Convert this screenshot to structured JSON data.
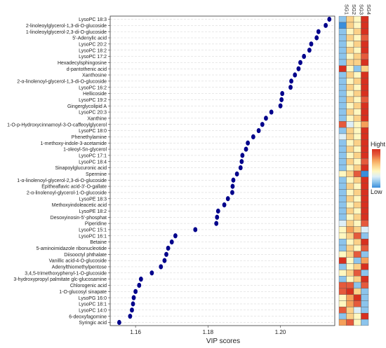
{
  "chart_data": {
    "type": "scatter",
    "title": "",
    "xlabel": "VIP scores",
    "ylabel": "",
    "xlim": [
      1.153,
      1.215
    ],
    "xticks": [
      1.16,
      1.18,
      1.2
    ],
    "xtick_labels": [
      "1.16",
      "1.18",
      "1.20"
    ],
    "grid": "horizontal dashed",
    "point_color": "#00008B",
    "categories": [
      "LysoPC 18:3",
      "2-linoleoylglycerol-1,3-di-O-glucoside",
      "1-linoleoylglycerol-2,3-di-O-glucoside",
      "5'-Adenylic acid",
      "LysoPC 20:2",
      "LysoPC 18:2",
      "LysoPC 17:2",
      "Hexadecylsphingosine",
      "d-pantothenic acid",
      "Xanthosine",
      "2-α-linolenoyl-glycerol-1,3-di-O-glucoside",
      "LysoPC 16:2",
      "Hellicoside",
      "LysoPC 19:2",
      "Gingerglycolipid A",
      "LysoPC 20:3",
      "Xanthine",
      "1-O-p-Hydroxycinnamoyl-3-O-caffeoylglycerol",
      "LysoPC 18:0",
      "Phenethylamine",
      "1-methoxy-indole-3-acetamide",
      "1-oleoyl-Sn-glycerol",
      "LysoPC 17:1",
      "LysoPC 18:4",
      "Sinapoylglucuronic acid",
      "Spermine",
      "1-α-linolenoyl-glycerol-2,3-di-O-glucoside",
      "Epitheaflavic acid-3'-O-gallate",
      "2-α-linolenoyl-glycerol-1-O-glucoside",
      "LysoPE 18:3",
      "Methoxyindoleacetic acid",
      "LysoPE 18:2",
      "Desoxyinosin-5'-phosphat",
      "Piperidine",
      "LysoPC 15:1",
      "LysoPC 16:1",
      "Betaine",
      "5-aminoimidazole ribonucleotide",
      "Diisooctyl phthalate",
      "Vanillic acid-4-O-glucoside",
      "Adenylthiomethylpentose",
      "3,4,5-trimethoxyphenyl-1-O-glucoside",
      "3-hydroxypropyl palmitate glc-glucosamine",
      "Chlorogenic acid",
      "1-O-glucosyl sinapate",
      "LysoPG 16:0",
      "LysoPC 18:1",
      "LysoPC 14:0",
      "6-deoxyfagomine",
      "Syringic acid"
    ],
    "values": [
      1.2135,
      1.2125,
      1.2105,
      1.21,
      1.2085,
      1.208,
      1.2065,
      1.2055,
      1.205,
      1.204,
      1.203,
      1.2028,
      1.2005,
      1.2003,
      1.2,
      1.1975,
      1.196,
      1.195,
      1.194,
      1.1925,
      1.191,
      1.1905,
      1.1895,
      1.1893,
      1.189,
      1.188,
      1.187,
      1.1868,
      1.1867,
      1.1855,
      1.1845,
      1.1828,
      1.1825,
      1.1823,
      1.1765,
      1.171,
      1.17,
      1.169,
      1.1685,
      1.168,
      1.167,
      1.1645,
      1.1615,
      1.161,
      1.16,
      1.1595,
      1.1593,
      1.159,
      1.1585,
      1.1555
    ],
    "heatmap": {
      "columns": [
        "SG1",
        "SG2",
        "SG3",
        "SG4"
      ],
      "legend_title": "Hight",
      "legend_low": "Low",
      "legend_position": "right",
      "color_scale": [
        "#3A8EDB",
        "#8CC4EC",
        "#DDEFF8",
        "#FFF7C0",
        "#FBD188",
        "#F5A05A",
        "#E55A3C",
        "#D7301F"
      ],
      "levels": [
        [
          1,
          4,
          3,
          7
        ],
        [
          0,
          4,
          3,
          7
        ],
        [
          1,
          3,
          4,
          7
        ],
        [
          1,
          4,
          3,
          6
        ],
        [
          1,
          3,
          4,
          7
        ],
        [
          1,
          4,
          3,
          7
        ],
        [
          1,
          3,
          4,
          6
        ],
        [
          1,
          4,
          4,
          7
        ],
        [
          7,
          3,
          1,
          4
        ],
        [
          1,
          4,
          3,
          7
        ],
        [
          1,
          3,
          4,
          7
        ],
        [
          1,
          4,
          3,
          7
        ],
        [
          1,
          3,
          4,
          7
        ],
        [
          1,
          4,
          3,
          6
        ],
        [
          1,
          3,
          4,
          7
        ],
        [
          1,
          4,
          3,
          7
        ],
        [
          1,
          3,
          4,
          7
        ],
        [
          6,
          2,
          3,
          5
        ],
        [
          1,
          4,
          3,
          7
        ],
        [
          2,
          4,
          3,
          7
        ],
        [
          1,
          3,
          4,
          7
        ],
        [
          1,
          4,
          3,
          7
        ],
        [
          1,
          3,
          4,
          7
        ],
        [
          1,
          4,
          3,
          6
        ],
        [
          1,
          3,
          4,
          7
        ],
        [
          3,
          4,
          6,
          0
        ],
        [
          1,
          3,
          4,
          7
        ],
        [
          1,
          4,
          3,
          7
        ],
        [
          1,
          3,
          4,
          7
        ],
        [
          1,
          4,
          3,
          7
        ],
        [
          1,
          3,
          4,
          7
        ],
        [
          1,
          4,
          3,
          7
        ],
        [
          1,
          3,
          4,
          7
        ],
        [
          2,
          4,
          3,
          6
        ],
        [
          3,
          5,
          4,
          2
        ],
        [
          3,
          4,
          6,
          1
        ],
        [
          1,
          3,
          4,
          7
        ],
        [
          1,
          4,
          3,
          6
        ],
        [
          3,
          4,
          6,
          1
        ],
        [
          7,
          3,
          1,
          5
        ],
        [
          1,
          3,
          4,
          7
        ],
        [
          3,
          4,
          6,
          1
        ],
        [
          1,
          3,
          4,
          7
        ],
        [
          6,
          6,
          1,
          6
        ],
        [
          6,
          7,
          4,
          1
        ],
        [
          3,
          5,
          7,
          1
        ],
        [
          3,
          5,
          6,
          1
        ],
        [
          6,
          4,
          2,
          1
        ],
        [
          1,
          4,
          3,
          7
        ],
        [
          5,
          6,
          3,
          1
        ]
      ]
    }
  }
}
